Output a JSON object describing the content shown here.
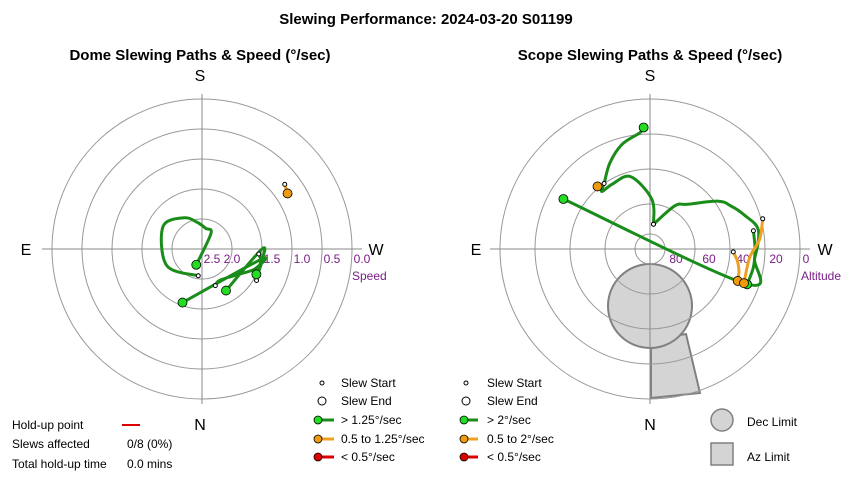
{
  "figure_title": "Slewing Performance: 2024-03-20 S01199",
  "colors": {
    "green": "#1a8c1a",
    "green_fill": "#22dd22",
    "orange": "#f0a020",
    "orange_fill": "#f09a10",
    "red": "#dd0000",
    "grid": "#999999",
    "axis": "#888888",
    "tick": "#7a1e86",
    "limit_fill": "#d4d4d4",
    "limit_stroke": "#808080"
  },
  "stats": {
    "holdup_label": "Hold-up point",
    "slews_label": "Slews affected",
    "slews_value": "0/8 (0%)",
    "total_label": "Total hold-up time",
    "total_value": "0.0 mins"
  },
  "chart_data": [
    {
      "type": "polar",
      "title": "Dome Slewing Paths & Speed (°/sec)",
      "directions": {
        "top": "S",
        "bottom": "N",
        "left": "E",
        "right": "W"
      },
      "radial_label": "Speed",
      "radial_ticks": [
        "2.5",
        "2.0",
        "1.5",
        "1.0",
        "0.5",
        "0.0"
      ],
      "legend": {
        "start": "Slew Start",
        "end": "Slew End",
        "fast": "> 1.25°/sec",
        "medium": "0.5 to 1.25°/sec",
        "slow": "< 0.5°/sec"
      },
      "series": [
        {
          "category": "fast",
          "start": [
            188,
            2.55
          ],
          "end": [
            200,
            2.72
          ],
          "path": [
            [
              188,
              2.55
            ],
            [
              245,
              2.35
            ],
            [
              300,
              2.25
            ],
            [
              330,
              2.4
            ],
            [
              350,
              2.55
            ],
            [
              10,
              2.65
            ],
            [
              30,
              2.7
            ],
            [
              200,
              2.72
            ]
          ]
        },
        {
          "category": "fast",
          "start": [
            160,
            2.35
          ],
          "end": [
            200,
            2.05
          ],
          "path": [
            [
              160,
              2.35
            ],
            [
              150,
              2.4
            ],
            [
              120,
              2.2
            ],
            [
              110,
              2.05
            ],
            [
              100,
              2.0
            ],
            [
              200,
              2.05
            ]
          ]
        },
        {
          "category": "fast",
          "start": [
            120,
            1.95
          ],
          "end": [
            150,
            2.2
          ],
          "path": [
            [
              120,
              1.95
            ],
            [
              112,
              1.98
            ],
            [
              100,
              1.98
            ],
            [
              90,
              2.0
            ],
            [
              150,
              2.2
            ]
          ]
        },
        {
          "category": "fast",
          "start": [
            95,
            2.05
          ],
          "end": [
            115,
            2.0
          ],
          "path": [
            [
              95,
              2.05
            ],
            [
              102,
              2.0
            ],
            [
              115,
              2.0
            ]
          ]
        },
        {
          "category": "medium",
          "start": [
            52,
            1.25
          ],
          "end": [
            57,
            1.3
          ],
          "path": [
            [
              57,
              1.3
            ],
            [
              52,
              1.25
            ]
          ]
        }
      ]
    },
    {
      "type": "polar",
      "title": "Scope Slewing Paths & Speed (°/sec)",
      "directions": {
        "top": "S",
        "bottom": "N",
        "left": "E",
        "right": "W"
      },
      "radial_label": "Altitude",
      "radial_ticks": [
        "80",
        "60",
        "40",
        "20",
        "0"
      ],
      "legend": {
        "start": "Slew Start",
        "end": "Slew End",
        "fast": "> 2°/sec",
        "medium": "0.5 to 2°/sec",
        "slow": "< 0.5°/sec"
      },
      "limits": {
        "dec_label": "Dec Limit",
        "az_label": "Az Limit"
      },
      "series": [
        {
          "category": "fast",
          "start": [
            8,
            75
          ],
          "end": [
            357,
            17
          ],
          "path": [
            [
              357,
              17
            ],
            [
              355,
              20
            ],
            [
              345,
              25
            ],
            [
              335,
              33
            ],
            [
              325,
              42
            ],
            [
              320,
              45
            ],
            [
              330,
              45
            ],
            [
              345,
              45
            ],
            [
              2,
              60
            ],
            [
              8,
              75
            ]
          ]
        },
        {
          "category": "fast",
          "start": [
            8,
            75
          ],
          "end": [
            300,
            30
          ],
          "path": [
            [
              8,
              75
            ],
            [
              30,
              60
            ],
            [
              40,
              55
            ],
            [
              55,
              40
            ],
            [
              62,
              35
            ],
            [
              70,
              30
            ],
            [
              80,
              24
            ],
            [
              95,
              27
            ],
            [
              110,
              30
            ],
            [
              300,
              30
            ]
          ]
        },
        {
          "category": "fast",
          "start": [
            80,
            27
          ],
          "end": [
            110,
            28
          ],
          "path": [
            [
              80,
              27
            ],
            [
              90,
              27
            ],
            [
              100,
              27
            ],
            [
              110,
              28
            ]
          ]
        },
        {
          "category": "medium",
          "start": [
            92,
            40
          ],
          "end": [
            110,
            34
          ],
          "path": [
            [
              92,
              40
            ],
            [
              98,
              37
            ],
            [
              104,
              35
            ],
            [
              110,
              34
            ]
          ]
        },
        {
          "category": "medium",
          "start": [
            75,
            20
          ],
          "end": [
            110,
            30
          ],
          "path": [
            [
              75,
              20
            ],
            [
              85,
              24
            ],
            [
              95,
              30
            ],
            [
              110,
              30
            ]
          ]
        },
        {
          "category": "medium",
          "start": [
            325,
            42
          ],
          "end": [
            320,
            41
          ],
          "path": [
            [
              325,
              42
            ],
            [
              320,
              41
            ]
          ]
        }
      ]
    }
  ]
}
